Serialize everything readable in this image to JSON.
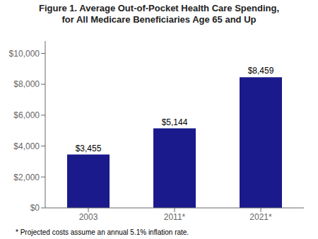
{
  "chart_data": {
    "type": "bar",
    "title": "Figure 1. Average Out-of-Pocket Health Care Spending,\nfor All Medicare Beneficiaries Age 65 and Up",
    "categories": [
      "2003",
      "2011*",
      "2021*"
    ],
    "values": [
      3455,
      5144,
      8459
    ],
    "value_labels": [
      "$3,455",
      "$5,144",
      "$8,459"
    ],
    "data_labels": true,
    "color": "#1a1a8c",
    "ylim": [
      0,
      10800
    ],
    "yticks": [
      {
        "value": 0,
        "label": "$0"
      },
      {
        "value": 2000,
        "label": "$2,000"
      },
      {
        "value": 4000,
        "label": "$4,000"
      },
      {
        "value": 6000,
        "label": "$6,000"
      },
      {
        "value": 8000,
        "label": "$8,000"
      },
      {
        "value": 10000,
        "label": "$10,000"
      }
    ],
    "grid": false,
    "footnote": "* Projected costs assume an annual 5.1% inflation rate."
  }
}
